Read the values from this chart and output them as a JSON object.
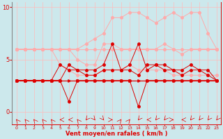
{
  "xlabel": "Vent moyen/en rafales ( km/h )",
  "x": [
    0,
    1,
    2,
    3,
    4,
    5,
    6,
    7,
    8,
    9,
    10,
    11,
    12,
    13,
    14,
    15,
    16,
    17,
    18,
    19,
    20,
    21,
    22,
    23
  ],
  "line_flat1_y": [
    3,
    3,
    3,
    3,
    3,
    3,
    3,
    3,
    3,
    3,
    3,
    3,
    3,
    3,
    3,
    3,
    3,
    3,
    3,
    3,
    3,
    3,
    3,
    3
  ],
  "line_flat2_y": [
    6,
    6,
    6,
    6,
    6,
    6,
    6,
    6,
    6,
    6,
    6,
    6,
    6,
    6,
    6,
    6,
    6,
    6,
    6,
    6,
    6,
    6,
    6,
    6
  ],
  "line_pink_upper_y": [
    6,
    6,
    6,
    6,
    6,
    6,
    6,
    6,
    6.5,
    7,
    7.5,
    9,
    9,
    9.5,
    9.5,
    9,
    8.5,
    9,
    9.5,
    9,
    9.5,
    9.5,
    7.5,
    6
  ],
  "line_pink_mid_y": [
    6,
    6,
    6,
    6,
    6,
    6,
    6,
    5,
    4.5,
    4.5,
    6.5,
    6.5,
    6,
    6,
    6,
    6,
    6,
    6.5,
    6,
    5.5,
    6,
    6,
    6,
    6
  ],
  "line_pink_low_y": [
    6,
    6,
    6,
    6,
    6,
    4.5,
    4,
    3.5,
    3.5,
    3.5,
    4,
    4,
    4,
    4.5,
    4,
    4,
    4,
    4,
    3.5,
    3.5,
    3.5,
    3.5,
    3.5,
    3.5
  ],
  "line_red_upper_y": [
    3,
    3,
    3,
    3,
    3,
    4.5,
    4,
    4,
    4,
    4,
    4.5,
    6.5,
    4,
    4.5,
    6.5,
    4,
    4.5,
    4.5,
    4,
    4,
    4.5,
    4,
    4,
    3
  ],
  "line_red_mid_y": [
    3,
    3,
    3,
    3,
    3,
    3,
    4.5,
    4,
    3.5,
    3.5,
    4,
    4,
    4,
    4,
    3.5,
    4.5,
    4.5,
    4,
    4,
    3.5,
    4,
    4,
    3.5,
    3
  ],
  "line_red_low_y": [
    3,
    3,
    3,
    3,
    3,
    3,
    1,
    3,
    3,
    3,
    3,
    3,
    3,
    3,
    0.5,
    3,
    3,
    3,
    3,
    3,
    3,
    3,
    3,
    3
  ],
  "color_dark_red": "#dd0000",
  "color_light_red": "#ffaaaa",
  "color_med_red": "#ff6666",
  "background_color": "#cce8ec",
  "grid_color": "#ffbbbb",
  "ylim": [
    -1.2,
    10.5
  ],
  "yticks": [
    0,
    5,
    10
  ],
  "xlim": [
    -0.5,
    23.5
  ]
}
